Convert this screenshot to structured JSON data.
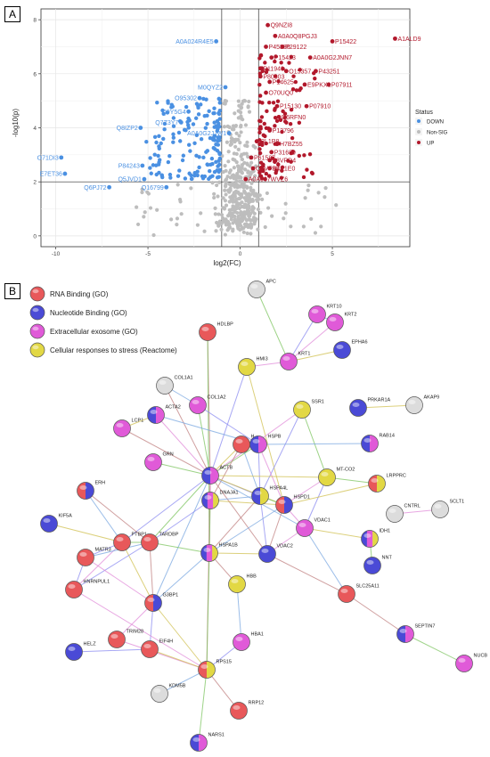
{
  "panels": {
    "a_label": "A",
    "b_label": "B"
  },
  "chart_data": {
    "type": "scatter",
    "xlabel": "log2(FC)",
    "ylabel": "-log10(p)",
    "xlim": [
      -10.8,
      9.2
    ],
    "ylim": [
      -0.4,
      8.4
    ],
    "xticks": [
      -10,
      -5,
      0,
      5
    ],
    "yticks": [
      0,
      2,
      4,
      6,
      8
    ],
    "thresholds": {
      "x": [
        -1,
        1
      ],
      "y": 2
    },
    "grid": true,
    "legend": {
      "title": "Status",
      "placement": "right",
      "entries": [
        {
          "label": "DOWN",
          "color": "#4a90e2"
        },
        {
          "label": "Non-SIG",
          "color": "#bdbdbd"
        },
        {
          "label": "UP",
          "color": "#b2182b"
        }
      ]
    },
    "colors": {
      "down": "#4a90e2",
      "nonsig": "#bdbdbd",
      "up": "#b2182b"
    },
    "labeled_points": [
      {
        "label": "Q9NZI8",
        "x": 1.5,
        "y": 7.8,
        "status": "UP"
      },
      {
        "label": "A0A0Q8PGJ3",
        "x": 1.9,
        "y": 7.4,
        "status": "UP"
      },
      {
        "label": "P15422",
        "x": 5.0,
        "y": 7.2,
        "status": "UP"
      },
      {
        "label": "A1ALD9",
        "x": 8.4,
        "y": 7.3,
        "status": "UP"
      },
      {
        "label": "P45880",
        "x": 1.4,
        "y": 7.0,
        "status": "UP"
      },
      {
        "label": "P29122",
        "x": 2.3,
        "y": 7.0,
        "status": "UP"
      },
      {
        "label": "A0A024R4E5",
        "x": -1.3,
        "y": 7.2,
        "status": "DOWN"
      },
      {
        "label": "P15423",
        "x": 1.7,
        "y": 6.6,
        "status": "UP"
      },
      {
        "label": "A0A0G2JNN7",
        "x": 3.8,
        "y": 6.6,
        "status": "UP"
      },
      {
        "label": "P11940",
        "x": 1.1,
        "y": 6.2,
        "status": "UP"
      },
      {
        "label": "O15357",
        "x": 2.5,
        "y": 6.1,
        "status": "UP"
      },
      {
        "label": "P43251",
        "x": 4.1,
        "y": 6.1,
        "status": "UP"
      },
      {
        "label": "P80303",
        "x": 1.1,
        "y": 5.9,
        "status": "UP"
      },
      {
        "label": "P14625",
        "x": 1.6,
        "y": 5.7,
        "status": "UP"
      },
      {
        "label": "E9PKX1",
        "x": 3.5,
        "y": 5.6,
        "status": "UP"
      },
      {
        "label": "P07911",
        "x": 4.8,
        "y": 5.6,
        "status": "UP"
      },
      {
        "label": "M0QYZ2",
        "x": -0.8,
        "y": 5.5,
        "status": "DOWN"
      },
      {
        "label": "O95302",
        "x": -2.2,
        "y": 5.1,
        "status": "DOWN"
      },
      {
        "label": "O70UQ0",
        "x": 1.4,
        "y": 5.3,
        "status": "UP"
      },
      {
        "label": "P15130",
        "x": 2.0,
        "y": 4.8,
        "status": "UP"
      },
      {
        "label": "P07910",
        "x": 3.6,
        "y": 4.8,
        "status": "UP"
      },
      {
        "label": "Q9Y5G4",
        "x": -2.8,
        "y": 4.6,
        "status": "DOWN"
      },
      {
        "label": "D6RFN0",
        "x": 2.1,
        "y": 4.4,
        "status": "UP"
      },
      {
        "label": "Q7Z3Y7",
        "x": -3.2,
        "y": 4.2,
        "status": "DOWN"
      },
      {
        "label": "Q8IZP2",
        "x": -5.4,
        "y": 4.0,
        "status": "DOWN"
      },
      {
        "label": "P13796",
        "x": 1.6,
        "y": 3.9,
        "status": "UP"
      },
      {
        "label": "A0A0G2JJW1",
        "x": -0.6,
        "y": 3.8,
        "status": "DOWN"
      },
      {
        "label": "I3L1P8",
        "x": 0.9,
        "y": 3.5,
        "status": "UP"
      },
      {
        "label": "H7BZ55",
        "x": 2.0,
        "y": 3.4,
        "status": "UP"
      },
      {
        "label": "P31689",
        "x": 1.7,
        "y": 3.1,
        "status": "UP"
      },
      {
        "label": "P61587",
        "x": 0.6,
        "y": 2.9,
        "status": "UP"
      },
      {
        "label": "F8VPD4",
        "x": 1.6,
        "y": 2.8,
        "status": "UP"
      },
      {
        "label": "O71DI3",
        "x": -9.7,
        "y": 2.9,
        "status": "DOWN"
      },
      {
        "label": "Q6VF96",
        "x": 0.7,
        "y": 2.5,
        "status": "UP"
      },
      {
        "label": "B4E1E0",
        "x": 1.6,
        "y": 2.5,
        "status": "UP"
      },
      {
        "label": "P84243",
        "x": -5.3,
        "y": 2.6,
        "status": "DOWN"
      },
      {
        "label": "E7ET36",
        "x": -9.5,
        "y": 2.3,
        "status": "DOWN"
      },
      {
        "label": "Q5JVD1",
        "x": -5.2,
        "y": 2.1,
        "status": "DOWN"
      },
      {
        "label": "A0A087WVZ6",
        "x": 0.3,
        "y": 2.1,
        "status": "UP"
      },
      {
        "label": "Q6PJ72",
        "x": -7.1,
        "y": 1.8,
        "status": "DOWN"
      },
      {
        "label": "Q16799",
        "x": -4.0,
        "y": 1.8,
        "status": "DOWN"
      }
    ]
  },
  "network": {
    "legend": [
      {
        "label": "RNA Binding (GO)",
        "color": "#e8585a"
      },
      {
        "label": "Nucleotide Binding (GO)",
        "color": "#4a4ad6"
      },
      {
        "label": "Extracellular exosome (GO)",
        "color": "#e05ad8"
      },
      {
        "label": "Cellular responses to stress (Reactome)",
        "color": "#e2d844"
      }
    ],
    "other_color": "#dcdcdc",
    "nodes": [
      {
        "id": "APC",
        "cats": []
      },
      {
        "id": "KRT10",
        "cats": [
          3
        ]
      },
      {
        "id": "KRT2",
        "cats": [
          3
        ]
      },
      {
        "id": "HDLBP",
        "cats": [
          1
        ]
      },
      {
        "id": "KRT1",
        "cats": [
          3
        ]
      },
      {
        "id": "EPHA6",
        "cats": [
          2
        ]
      },
      {
        "id": "HMI3",
        "cats": [
          4
        ]
      },
      {
        "id": "COL1A1",
        "cats": []
      },
      {
        "id": "COL1A2",
        "cats": [
          3
        ]
      },
      {
        "id": "ACTA2",
        "cats": [
          2,
          3
        ]
      },
      {
        "id": "LCP1",
        "cats": [
          3
        ]
      },
      {
        "id": "SSR1",
        "cats": [
          4
        ]
      },
      {
        "id": "PRKAR1A",
        "cats": [
          2
        ]
      },
      {
        "id": "AKAP9",
        "cats": []
      },
      {
        "id": "RAB14",
        "cats": [
          2,
          3
        ]
      },
      {
        "id": "HSPB",
        "cats": [
          2,
          3
        ]
      },
      {
        "id": "H",
        "cats": [
          1
        ]
      },
      {
        "id": "GRN",
        "cats": [
          3
        ]
      },
      {
        "id": "ACTB",
        "cats": [
          2,
          3
        ]
      },
      {
        "id": "MT-CO2",
        "cats": [
          4
        ]
      },
      {
        "id": "LRPPRC",
        "cats": [
          1,
          4
        ]
      },
      {
        "id": "ERH",
        "cats": [
          1,
          2
        ]
      },
      {
        "id": "HSPA4L",
        "cats": [
          2,
          4
        ]
      },
      {
        "id": "HSPD1",
        "cats": [
          1,
          2
        ]
      },
      {
        "id": "DNAJA1",
        "cats": [
          2,
          3,
          4
        ]
      },
      {
        "id": "CNTRL",
        "cats": []
      },
      {
        "id": "SCLT1",
        "cats": []
      },
      {
        "id": "KIF5A",
        "cats": [
          2
        ]
      },
      {
        "id": "PTBP1",
        "cats": [
          1
        ]
      },
      {
        "id": "TARDBP",
        "cats": [
          1
        ]
      },
      {
        "id": "VDAC1",
        "cats": [
          3
        ]
      },
      {
        "id": "IDH1",
        "cats": [
          2,
          3,
          4
        ]
      },
      {
        "id": "MATR3",
        "cats": [
          1
        ]
      },
      {
        "id": "HSPA1B",
        "cats": [
          2,
          3,
          4
        ]
      },
      {
        "id": "VDAC2",
        "cats": [
          2
        ]
      },
      {
        "id": "NNT",
        "cats": [
          2
        ]
      },
      {
        "id": "HNRNPUL1",
        "cats": [
          1
        ]
      },
      {
        "id": "G3BP1",
        "cats": [
          1,
          2
        ]
      },
      {
        "id": "HBB",
        "cats": [
          4
        ]
      },
      {
        "id": "SLC25A11",
        "cats": [
          1
        ]
      },
      {
        "id": "HELZ",
        "cats": [
          2
        ]
      },
      {
        "id": "TRIM28",
        "cats": [
          1
        ]
      },
      {
        "id": "EIF4H",
        "cats": [
          1
        ]
      },
      {
        "id": "HBA1",
        "cats": [
          3
        ]
      },
      {
        "id": "SEPTIN7",
        "cats": [
          2,
          3
        ]
      },
      {
        "id": "NUCB",
        "cats": [
          3
        ]
      },
      {
        "id": "RPS15",
        "cats": [
          1,
          4
        ]
      },
      {
        "id": "KDM5B",
        "cats": []
      },
      {
        "id": "RRP12",
        "cats": [
          1
        ]
      },
      {
        "id": "NARS1",
        "cats": [
          2,
          3
        ]
      }
    ],
    "edges": [
      [
        "APC",
        "KRT1"
      ],
      [
        "KRT10",
        "KRT1"
      ],
      [
        "KRT2",
        "KRT1"
      ],
      [
        "KRT1",
        "EPHA6"
      ],
      [
        "KRT10",
        "KRT2"
      ],
      [
        "HDLBP",
        "ACTB"
      ],
      [
        "HDLBP",
        "HSPA1B"
      ],
      [
        "HMI3",
        "ACTB"
      ],
      [
        "HMI3",
        "KRT1"
      ],
      [
        "HMI3",
        "HSPD1"
      ],
      [
        "COL1A1",
        "COL1A2"
      ],
      [
        "COL1A1",
        "ACTB"
      ],
      [
        "COL1A2",
        "ACTB"
      ],
      [
        "COL1A2",
        "HSPB"
      ],
      [
        "ACTA2",
        "ACTB"
      ],
      [
        "ACTA2",
        "LCP1"
      ],
      [
        "ACTA2",
        "HSPB"
      ],
      [
        "LCP1",
        "ACTB"
      ],
      [
        "SSR1",
        "MT-CO2"
      ],
      [
        "SSR1",
        "HSPA4L"
      ],
      [
        "SSR1",
        "ACTB"
      ],
      [
        "PRKAR1A",
        "AKAP9"
      ],
      [
        "RAB14",
        "HSPB"
      ],
      [
        "HSPB",
        "H"
      ],
      [
        "HSPB",
        "ACTB"
      ],
      [
        "HSPB",
        "HSPA4L"
      ],
      [
        "HSPB",
        "HSPD1"
      ],
      [
        "H",
        "ACTB"
      ],
      [
        "H",
        "HSPA4L"
      ],
      [
        "H",
        "DNAJA1"
      ],
      [
        "GRN",
        "ACTB"
      ],
      [
        "ACTB",
        "HSPA4L"
      ],
      [
        "ACTB",
        "DNAJA1"
      ],
      [
        "ACTB",
        "HSPD1"
      ],
      [
        "ACTB",
        "VDAC1"
      ],
      [
        "ACTB",
        "VDAC2"
      ],
      [
        "ACTB",
        "TARDBP"
      ],
      [
        "ACTB",
        "PTBP1"
      ],
      [
        "ACTB",
        "HSPA1B"
      ],
      [
        "ACTB",
        "MT-CO2"
      ],
      [
        "ACTB",
        "G3BP1"
      ],
      [
        "ACTB",
        "RPS15"
      ],
      [
        "MT-CO2",
        "LRPPRC"
      ],
      [
        "MT-CO2",
        "VDAC1"
      ],
      [
        "MT-CO2",
        "HSPD1"
      ],
      [
        "LRPPRC",
        "HSPD1"
      ],
      [
        "HSPA4L",
        "DNAJA1"
      ],
      [
        "HSPA4L",
        "HSPA1B"
      ],
      [
        "HSPA4L",
        "HSPD1"
      ],
      [
        "HSPA4L",
        "VDAC2"
      ],
      [
        "HSPD1",
        "VDAC1"
      ],
      [
        "HSPD1",
        "DNAJA1"
      ],
      [
        "HSPD1",
        "HSPA1B"
      ],
      [
        "HSPD1",
        "VDAC2"
      ],
      [
        "DNAJA1",
        "HSPA1B"
      ],
      [
        "DNAJA1",
        "TARDBP"
      ],
      [
        "CNTRL",
        "SCLT1"
      ],
      [
        "KIF5A",
        "PTBP1"
      ],
      [
        "ERH",
        "PTBP1"
      ],
      [
        "ERH",
        "TARDBP"
      ],
      [
        "PTBP1",
        "TARDBP"
      ],
      [
        "PTBP1",
        "MATR3"
      ],
      [
        "PTBP1",
        "HNRNPUL1"
      ],
      [
        "PTBP1",
        "G3BP1"
      ],
      [
        "TARDBP",
        "MATR3"
      ],
      [
        "TARDBP",
        "G3BP1"
      ],
      [
        "TARDBP",
        "HSPA1B"
      ],
      [
        "TARDBP",
        "HNRNPUL1"
      ],
      [
        "VDAC1",
        "VDAC2"
      ],
      [
        "VDAC1",
        "IDH1"
      ],
      [
        "VDAC1",
        "SLC25A11"
      ],
      [
        "VDAC2",
        "SLC25A11"
      ],
      [
        "IDH1",
        "NNT"
      ],
      [
        "MATR3",
        "HNRNPUL1"
      ],
      [
        "MATR3",
        "G3BP1"
      ],
      [
        "HSPA1B",
        "VDAC2"
      ],
      [
        "HSPA1B",
        "G3BP1"
      ],
      [
        "HSPA1B",
        "HBB"
      ],
      [
        "HSPA1B",
        "RPS15"
      ],
      [
        "G3BP1",
        "EIF4H"
      ],
      [
        "G3BP1",
        "TRIM28"
      ],
      [
        "G3BP1",
        "RPS15"
      ],
      [
        "HBB",
        "HBA1"
      ],
      [
        "SLC25A11",
        "SEPTIN7"
      ],
      [
        "SEPTIN7",
        "NUCB"
      ],
      [
        "HELZ",
        "EIF4H"
      ],
      [
        "TRIM28",
        "RPS15"
      ],
      [
        "EIF4H",
        "RPS15"
      ],
      [
        "RPS15",
        "KDM5B"
      ],
      [
        "RPS15",
        "RRP12"
      ],
      [
        "RPS15",
        "NARS1"
      ],
      [
        "RPS15",
        "HBA1"
      ],
      [
        "HNRNPUL1",
        "RPS15"
      ]
    ]
  }
}
